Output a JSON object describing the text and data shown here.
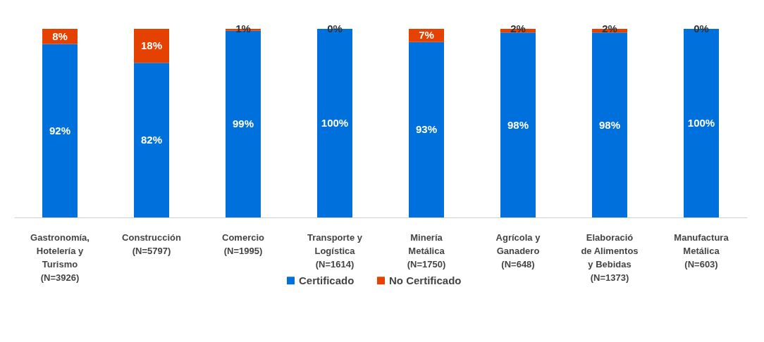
{
  "chart_data": {
    "type": "bar",
    "stacked": true,
    "legend": "bottom",
    "grid": false,
    "categories": [
      "Gastronomía, Hotelería y Turismo (N=3926)",
      "Construcción (N=5797)",
      "Comercio (N=1995)",
      "Transporte y Logística (N=1614)",
      "Minería Metálica (N=1750)",
      "Agrícola y Ganadero (N=648)",
      "Elaboració de Alimentos y Bebidas (N=1373)",
      "Manufactura Metálica (N=603)"
    ],
    "series": [
      {
        "name": "Certificado",
        "color": "#0070dd",
        "values": [
          92,
          82,
          99,
          100,
          93,
          98,
          98,
          100
        ],
        "value_labels": [
          "92%",
          "82%",
          "99%",
          "100%",
          "93%",
          "98%",
          "98%",
          "100%"
        ]
      },
      {
        "name": "No Certificado",
        "color": "#e54100",
        "values": [
          8,
          18,
          1,
          0,
          7,
          2,
          2,
          0
        ],
        "value_labels": [
          "8%",
          "18%",
          "1%",
          "0%",
          "7%",
          "2%",
          "2%",
          "0%"
        ]
      }
    ]
  }
}
